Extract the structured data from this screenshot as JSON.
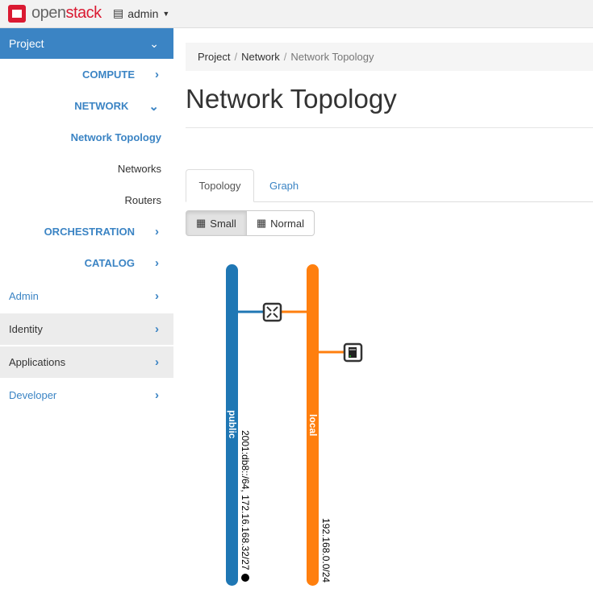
{
  "topbar": {
    "brand_prefix": "open",
    "brand_suffix": "stack",
    "project_label": "admin"
  },
  "sidebar": {
    "project": "Project",
    "items": [
      {
        "label": "COMPUTE"
      },
      {
        "label": "NETWORK"
      },
      {
        "label": "Network Topology"
      },
      {
        "label": "Networks"
      },
      {
        "label": "Routers"
      },
      {
        "label": "ORCHESTRATION"
      },
      {
        "label": "CATALOG"
      }
    ],
    "dashboards": [
      {
        "label": "Admin"
      },
      {
        "label": "Identity"
      },
      {
        "label": "Applications"
      },
      {
        "label": "Developer"
      }
    ]
  },
  "breadcrumb": [
    "Project",
    "Network",
    "Network Topology"
  ],
  "page_title": "Network Topology",
  "tabs": [
    "Topology",
    "Graph"
  ],
  "view_buttons": {
    "small": "Small",
    "normal": "Normal",
    "selected": "Small"
  },
  "topology": {
    "networks": [
      {
        "name": "public",
        "subnets": "2001:db8::/64, 172.16.168.32/27",
        "color": "#1f77b4",
        "external": true
      },
      {
        "name": "local",
        "subnets": "192.168.0.0/24",
        "color": "#ff7f0e"
      }
    ],
    "devices": [
      {
        "type": "router-icon"
      },
      {
        "type": "instance-icon"
      }
    ]
  }
}
